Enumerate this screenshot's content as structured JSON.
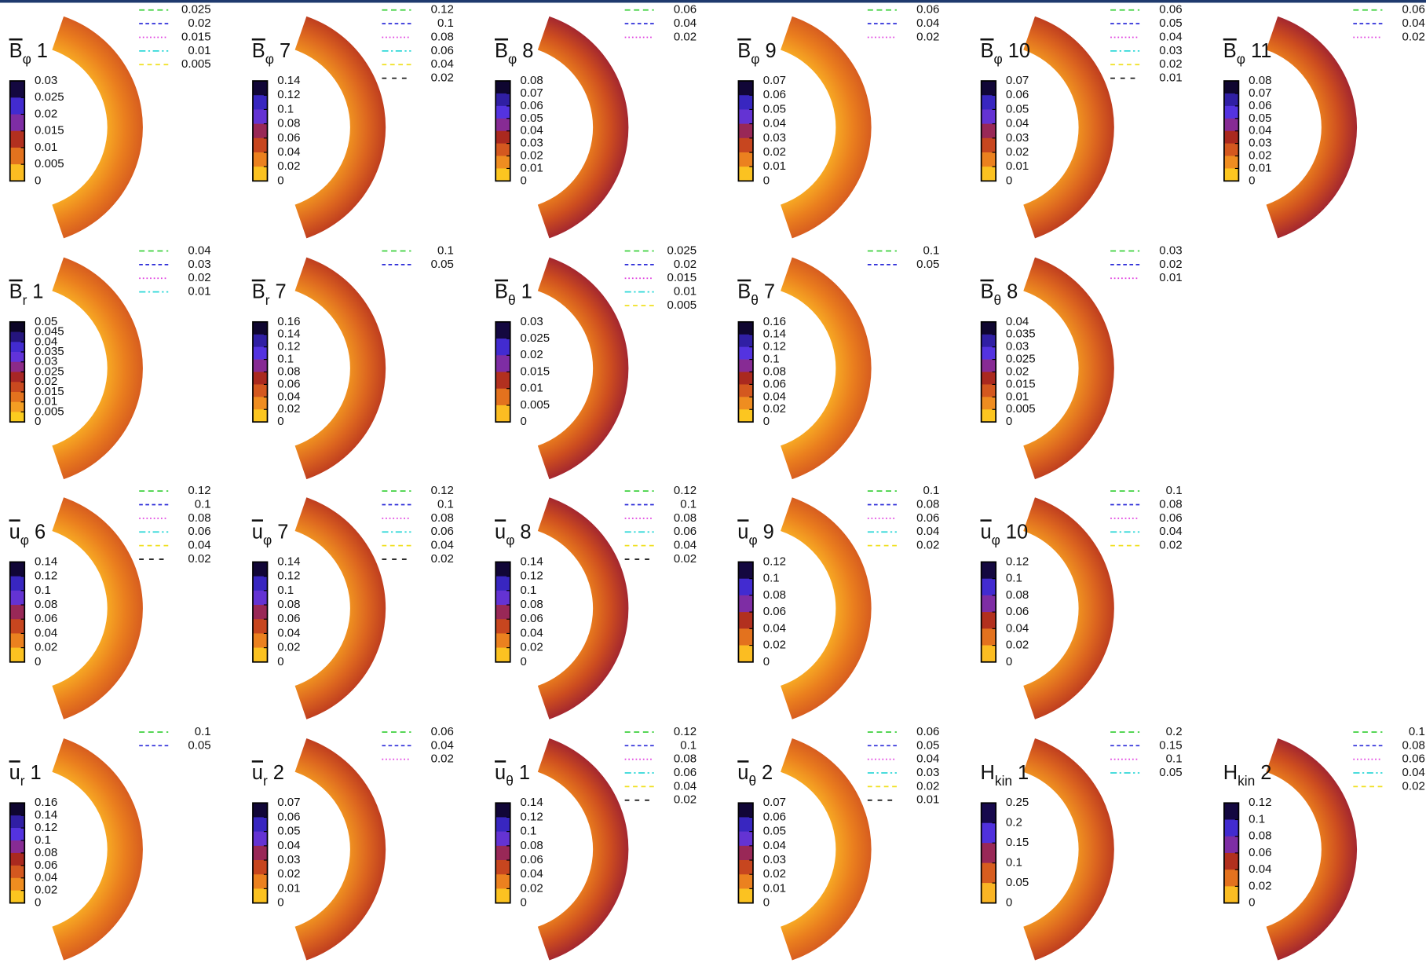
{
  "rows": [
    [
      {
        "title": {
          "symbol": "B",
          "overline": true,
          "sub": "φ",
          "index": "1"
        },
        "legend": [
          "0.025",
          "0.02",
          "0.015",
          "0.01",
          "0.005"
        ],
        "colorbar": [
          "0.03",
          "0.025",
          "0.02",
          "0.015",
          "0.01",
          "0.005",
          "0"
        ]
      },
      {
        "title": {
          "symbol": "B",
          "overline": true,
          "sub": "φ",
          "index": "7"
        },
        "legend": [
          "0.12",
          "0.1",
          "0.08",
          "0.06",
          "0.04",
          "0.02"
        ],
        "colorbar": [
          "0.14",
          "0.12",
          "0.1",
          "0.08",
          "0.06",
          "0.04",
          "0.02",
          "0"
        ]
      },
      {
        "title": {
          "symbol": "B",
          "overline": true,
          "sub": "φ",
          "index": "8"
        },
        "legend": [
          "0.06",
          "0.04",
          "0.02"
        ],
        "colorbar": [
          "0.08",
          "0.07",
          "0.06",
          "0.05",
          "0.04",
          "0.03",
          "0.02",
          "0.01",
          "0"
        ]
      },
      {
        "title": {
          "symbol": "B",
          "overline": true,
          "sub": "φ",
          "index": "9"
        },
        "legend": [
          "0.06",
          "0.04",
          "0.02"
        ],
        "colorbar": [
          "0.07",
          "0.06",
          "0.05",
          "0.04",
          "0.03",
          "0.02",
          "0.01",
          "0"
        ]
      },
      {
        "title": {
          "symbol": "B",
          "overline": true,
          "sub": "φ",
          "index": "10"
        },
        "legend": [
          "0.06",
          "0.05",
          "0.04",
          "0.03",
          "0.02",
          "0.01"
        ],
        "colorbar": [
          "0.07",
          "0.06",
          "0.05",
          "0.04",
          "0.03",
          "0.02",
          "0.01",
          "0"
        ]
      },
      {
        "title": {
          "symbol": "B",
          "overline": true,
          "sub": "φ",
          "index": "11"
        },
        "legend": [
          "0.06",
          "0.04",
          "0.02"
        ],
        "colorbar": [
          "0.08",
          "0.07",
          "0.06",
          "0.05",
          "0.04",
          "0.03",
          "0.02",
          "0.01",
          "0"
        ]
      }
    ],
    [
      {
        "title": {
          "symbol": "B",
          "overline": true,
          "sub": "r",
          "index": "1"
        },
        "legend": [
          "0.04",
          "0.03",
          "0.02",
          "0.01"
        ],
        "colorbar": [
          "0.05",
          "0.045",
          "0.04",
          "0.035",
          "0.03",
          "0.025",
          "0.02",
          "0.015",
          "0.01",
          "0.005",
          "0"
        ]
      },
      {
        "title": {
          "symbol": "B",
          "overline": true,
          "sub": "r",
          "index": "7"
        },
        "legend": [
          "0.1",
          "0.05"
        ],
        "colorbar": [
          "0.16",
          "0.14",
          "0.12",
          "0.1",
          "0.08",
          "0.06",
          "0.04",
          "0.02",
          "0"
        ]
      },
      {
        "title": {
          "symbol": "B",
          "overline": true,
          "sub": "θ",
          "index": "1"
        },
        "legend": [
          "0.025",
          "0.02",
          "0.015",
          "0.01",
          "0.005"
        ],
        "colorbar": [
          "0.03",
          "0.025",
          "0.02",
          "0.015",
          "0.01",
          "0.005",
          "0"
        ]
      },
      {
        "title": {
          "symbol": "B",
          "overline": true,
          "sub": "θ",
          "index": "7"
        },
        "legend": [
          "0.1",
          "0.05"
        ],
        "colorbar": [
          "0.16",
          "0.14",
          "0.12",
          "0.1",
          "0.08",
          "0.06",
          "0.04",
          "0.02",
          "0"
        ]
      },
      {
        "title": {
          "symbol": "B",
          "overline": true,
          "sub": "θ",
          "index": "8"
        },
        "legend": [
          "0.03",
          "0.02",
          "0.01"
        ],
        "colorbar": [
          "0.04",
          "0.035",
          "0.03",
          "0.025",
          "0.02",
          "0.015",
          "0.01",
          "0.005",
          "0"
        ]
      }
    ],
    [
      {
        "title": {
          "symbol": "u",
          "overline": true,
          "sub": "φ",
          "index": "6"
        },
        "legend": [
          "0.12",
          "0.1",
          "0.08",
          "0.06",
          "0.04",
          "0.02"
        ],
        "colorbar": [
          "0.14",
          "0.12",
          "0.1",
          "0.08",
          "0.06",
          "0.04",
          "0.02",
          "0"
        ]
      },
      {
        "title": {
          "symbol": "u",
          "overline": true,
          "sub": "φ",
          "index": "7"
        },
        "legend": [
          "0.12",
          "0.1",
          "0.08",
          "0.06",
          "0.04",
          "0.02"
        ],
        "colorbar": [
          "0.14",
          "0.12",
          "0.1",
          "0.08",
          "0.06",
          "0.04",
          "0.02",
          "0"
        ]
      },
      {
        "title": {
          "symbol": "u",
          "overline": true,
          "sub": "φ",
          "index": "8"
        },
        "legend": [
          "0.12",
          "0.1",
          "0.08",
          "0.06",
          "0.04",
          "0.02"
        ],
        "colorbar": [
          "0.14",
          "0.12",
          "0.1",
          "0.08",
          "0.06",
          "0.04",
          "0.02",
          "0"
        ]
      },
      {
        "title": {
          "symbol": "u",
          "overline": true,
          "sub": "φ",
          "index": "9"
        },
        "legend": [
          "0.1",
          "0.08",
          "0.06",
          "0.04",
          "0.02"
        ],
        "colorbar": [
          "0.12",
          "0.1",
          "0.08",
          "0.06",
          "0.04",
          "0.02",
          "0"
        ]
      },
      {
        "title": {
          "symbol": "u",
          "overline": true,
          "sub": "φ",
          "index": "10"
        },
        "legend": [
          "0.1",
          "0.08",
          "0.06",
          "0.04",
          "0.02"
        ],
        "colorbar": [
          "0.12",
          "0.1",
          "0.08",
          "0.06",
          "0.04",
          "0.02",
          "0"
        ]
      }
    ],
    [
      {
        "title": {
          "symbol": "u",
          "overline": true,
          "sub": "r",
          "index": "1"
        },
        "legend": [
          "0.1",
          "0.05"
        ],
        "colorbar": [
          "0.16",
          "0.14",
          "0.12",
          "0.1",
          "0.08",
          "0.06",
          "0.04",
          "0.02",
          "0"
        ]
      },
      {
        "title": {
          "symbol": "u",
          "overline": true,
          "sub": "r",
          "index": "2"
        },
        "legend": [
          "0.06",
          "0.04",
          "0.02"
        ],
        "colorbar": [
          "0.07",
          "0.06",
          "0.05",
          "0.04",
          "0.03",
          "0.02",
          "0.01",
          "0"
        ]
      },
      {
        "title": {
          "symbol": "u",
          "overline": true,
          "sub": "θ",
          "index": "1"
        },
        "legend": [
          "0.12",
          "0.1",
          "0.08",
          "0.06",
          "0.04",
          "0.02"
        ],
        "colorbar": [
          "0.14",
          "0.12",
          "0.1",
          "0.08",
          "0.06",
          "0.04",
          "0.02",
          "0"
        ]
      },
      {
        "title": {
          "symbol": "u",
          "overline": true,
          "sub": "θ",
          "index": "2"
        },
        "legend": [
          "0.06",
          "0.05",
          "0.04",
          "0.03",
          "0.02",
          "0.01"
        ],
        "colorbar": [
          "0.07",
          "0.06",
          "0.05",
          "0.04",
          "0.03",
          "0.02",
          "0.01",
          "0"
        ]
      },
      {
        "title": {
          "symbol": "H",
          "overline": false,
          "sub": "kin",
          "index": "1"
        },
        "legend": [
          "0.2",
          "0.15",
          "0.1",
          "0.05"
        ],
        "colorbar": [
          "0.25",
          "0.2",
          "0.15",
          "0.1",
          "0.05",
          "0"
        ]
      },
      {
        "title": {
          "symbol": "H",
          "overline": false,
          "sub": "kin",
          "index": "2"
        },
        "legend": [
          "0.1",
          "0.08",
          "0.06",
          "0.04",
          "0.02"
        ],
        "colorbar": [
          "0.12",
          "0.1",
          "0.08",
          "0.06",
          "0.04",
          "0.02",
          "0"
        ]
      }
    ]
  ]
}
